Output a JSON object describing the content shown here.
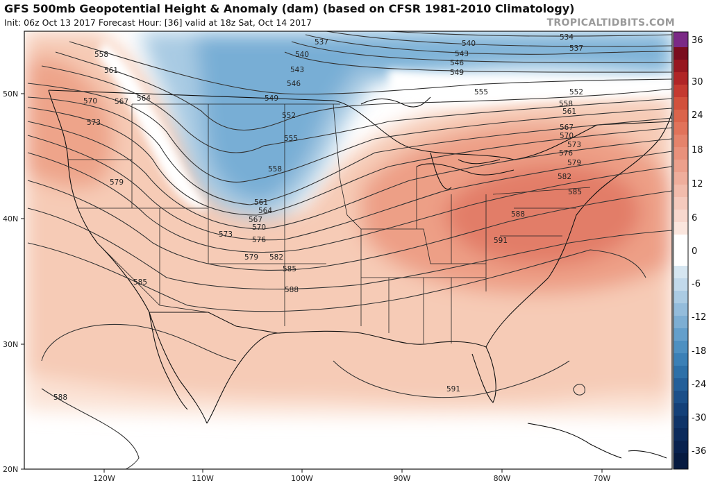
{
  "header": {
    "title": "GFS 500mb Geopotential Height & Anomaly (dam) (based on CFSR 1981-2010 Climatology)",
    "subtitle": "Init: 06z Oct 13 2017   Forecast Hour: [36]   valid at 18z Sat, Oct 14 2017",
    "brand": "TROPICALTIDBITS.COM"
  },
  "axes": {
    "lat_labels": [
      "50N",
      "40N",
      "30N",
      "20N"
    ],
    "lon_labels": [
      "120W",
      "110W",
      "100W",
      "90W",
      "80W",
      "70W"
    ]
  },
  "colorbar": {
    "ticks": [
      "36",
      "30",
      "24",
      "18",
      "12",
      "6",
      "0",
      "-6",
      "-12",
      "-18",
      "-24",
      "-30",
      "-36"
    ]
  },
  "contour_labels": [
    "534",
    "537",
    "537",
    "540",
    "540",
    "543",
    "543",
    "546",
    "546",
    "549",
    "549",
    "552",
    "552",
    "555",
    "555",
    "558",
    "558",
    "558",
    "561",
    "561",
    "561",
    "564",
    "564",
    "567",
    "567",
    "567",
    "570",
    "570",
    "570",
    "573",
    "573",
    "573",
    "576",
    "576",
    "579",
    "579",
    "579",
    "582",
    "582",
    "585",
    "585",
    "585",
    "588",
    "588",
    "588",
    "591",
    "591"
  ],
  "colors": {
    "positive_light": "#f9d8c8",
    "positive_mid": "#f0b298",
    "positive_strong": "#e2806a",
    "negative_light": "#c6dceb",
    "negative_mid": "#8fbbdb",
    "negative_strong": "#5f9ecb",
    "contour": "#333333"
  }
}
